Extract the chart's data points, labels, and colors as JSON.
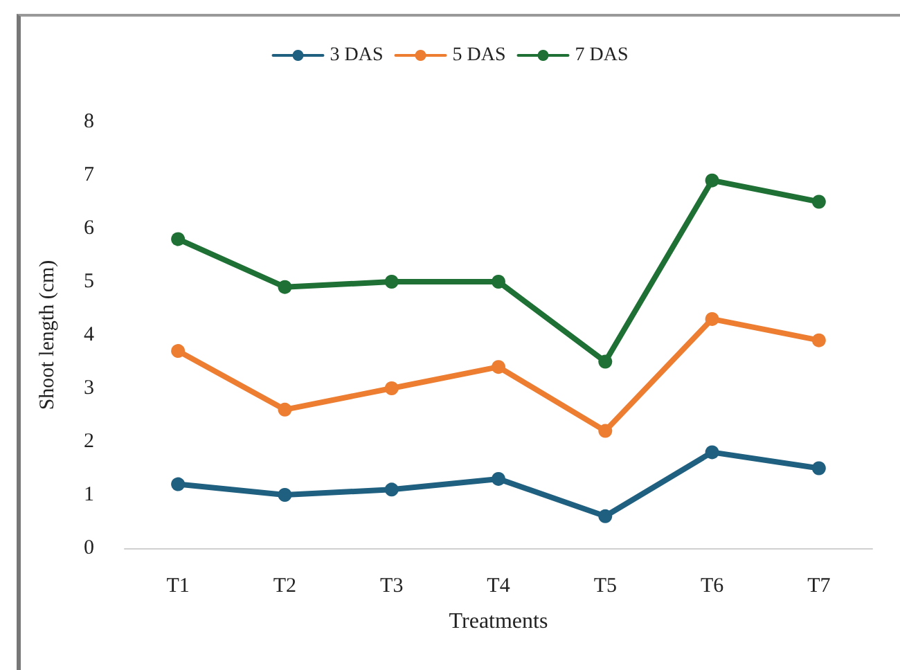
{
  "chart_data": {
    "type": "line",
    "xlabel": "Treatments",
    "ylabel": "Shoot length (cm)",
    "categories": [
      "T1",
      "T2",
      "T3",
      "T4",
      "T5",
      "T6",
      "T7"
    ],
    "series": [
      {
        "name": "3 DAS",
        "color": "#1f5f7f",
        "values": [
          1.2,
          1.0,
          1.1,
          1.3,
          0.6,
          1.8,
          1.5
        ]
      },
      {
        "name": "5 DAS",
        "color": "#ed7d31",
        "values": [
          3.7,
          2.6,
          3.0,
          3.4,
          2.2,
          4.3,
          3.9
        ]
      },
      {
        "name": "7 DAS",
        "color": "#1e7035",
        "values": [
          5.8,
          4.9,
          5.0,
          5.0,
          3.5,
          6.9,
          6.5
        ]
      }
    ],
    "ylim": [
      0,
      8
    ],
    "yticks": [
      0,
      1,
      2,
      3,
      4,
      5,
      6,
      7,
      8
    ],
    "grid": false,
    "legend": "top",
    "marker": "circle",
    "line_style": "solid"
  }
}
